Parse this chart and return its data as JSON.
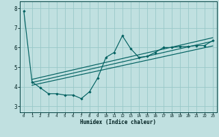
{
  "xlabel": "Humidex (Indice chaleur)",
  "bg_color": "#c0e0e0",
  "line_color": "#006060",
  "grid_color": "#98c8c8",
  "xlim": [
    -0.5,
    23.5
  ],
  "ylim": [
    2.7,
    8.35
  ],
  "yticks": [
    3,
    4,
    5,
    6,
    7,
    8
  ],
  "xticks": [
    0,
    1,
    2,
    3,
    4,
    5,
    6,
    7,
    8,
    9,
    10,
    11,
    12,
    13,
    14,
    15,
    16,
    17,
    18,
    19,
    20,
    21,
    22,
    23
  ],
  "scatter_x": [
    0,
    1,
    2,
    3,
    4,
    5,
    6,
    7,
    8,
    9,
    10,
    11,
    12,
    13,
    14,
    15,
    16,
    17,
    18,
    19,
    20,
    21,
    22,
    23
  ],
  "scatter_y": [
    7.85,
    4.25,
    3.95,
    3.65,
    3.65,
    3.58,
    3.58,
    3.4,
    3.75,
    4.45,
    5.5,
    5.75,
    6.6,
    5.95,
    5.5,
    5.55,
    5.75,
    6.0,
    6.0,
    6.05,
    6.05,
    6.1,
    6.1,
    6.35
  ],
  "trend1_x": [
    1,
    23
  ],
  "trend1_y": [
    4.22,
    6.32
  ],
  "trend2_x": [
    1,
    23
  ],
  "trend2_y": [
    4.08,
    6.08
  ],
  "trend3_x": [
    1,
    23
  ],
  "trend3_y": [
    4.38,
    6.5
  ]
}
